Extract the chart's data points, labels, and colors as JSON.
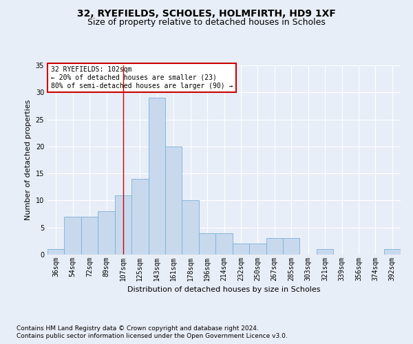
{
  "title1": "32, RYEFIELDS, SCHOLES, HOLMFIRTH, HD9 1XF",
  "title2": "Size of property relative to detached houses in Scholes",
  "xlabel": "Distribution of detached houses by size in Scholes",
  "ylabel": "Number of detached properties",
  "footnote1": "Contains HM Land Registry data © Crown copyright and database right 2024.",
  "footnote2": "Contains public sector information licensed under the Open Government Licence v3.0.",
  "bin_labels": [
    "36sqm",
    "54sqm",
    "72sqm",
    "89sqm",
    "107sqm",
    "125sqm",
    "143sqm",
    "161sqm",
    "178sqm",
    "196sqm",
    "214sqm",
    "232sqm",
    "250sqm",
    "267sqm",
    "285sqm",
    "303sqm",
    "321sqm",
    "339sqm",
    "356sqm",
    "374sqm",
    "392sqm"
  ],
  "values": [
    1,
    7,
    7,
    8,
    11,
    14,
    29,
    20,
    10,
    4,
    4,
    2,
    2,
    3,
    3,
    0,
    1,
    0,
    0,
    0,
    1
  ],
  "bar_color": "#c8d9ee",
  "bar_edge_color": "#7bafd4",
  "vline_idx": 4,
  "vline_color": "#cc0000",
  "annotation_text": "32 RYEFIELDS: 102sqm\n← 20% of detached houses are smaller (23)\n80% of semi-detached houses are larger (90) →",
  "annotation_box_color": "#ffffff",
  "annotation_box_edge": "#cc0000",
  "ylim": [
    0,
    35
  ],
  "yticks": [
    0,
    5,
    10,
    15,
    20,
    25,
    30,
    35
  ],
  "bg_color": "#e8eef7",
  "plot_bg_color": "#e8eef7",
  "grid_color": "#ffffff",
  "title1_fontsize": 10,
  "title2_fontsize": 9,
  "axis_label_fontsize": 8,
  "tick_fontsize": 7,
  "footnote_fontsize": 6.5
}
